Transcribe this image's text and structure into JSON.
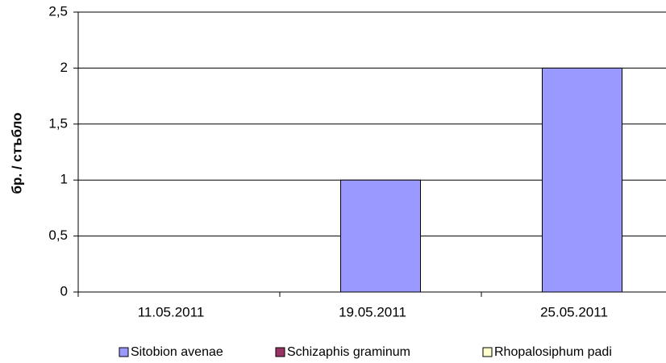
{
  "chart_data": {
    "type": "bar",
    "y_label": "бр. / стъбло",
    "categories": [
      "11.05.2011",
      "19.05.2011",
      "25.05.2011"
    ],
    "series": [
      {
        "name": "Sitobion avenae",
        "color": "#9999ff",
        "values": [
          0,
          1,
          2
        ]
      },
      {
        "name": "Schizaphis graminum",
        "color": "#993366",
        "values": [
          0,
          0,
          0
        ]
      },
      {
        "name": "Rhopalosiphum padi",
        "color": "#ffffcc",
        "values": [
          0,
          0,
          0
        ]
      }
    ],
    "ylim": [
      0,
      2.5
    ],
    "yticks": [
      0,
      {
        "value": 0.5,
        "label": "0,5"
      },
      1,
      {
        "value": 1.5,
        "label": "1,5"
      },
      2,
      {
        "value": 2.5,
        "label": "2,5"
      }
    ],
    "grid": true,
    "legend": "bottom"
  }
}
